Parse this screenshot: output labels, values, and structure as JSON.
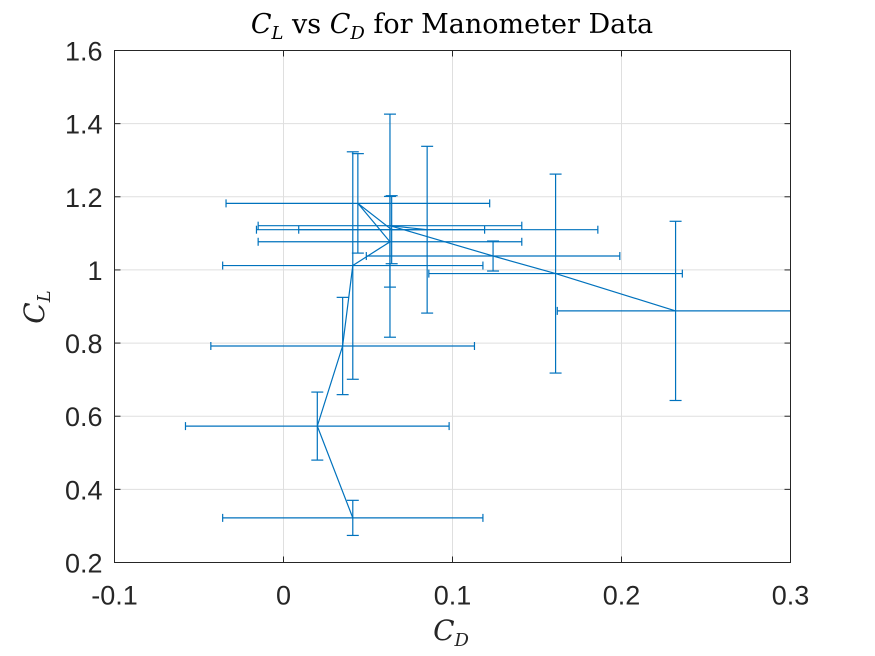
{
  "chart_data": {
    "type": "scatter",
    "title": "C_L vs C_D for Manometer Data",
    "title_parts": {
      "a": "C",
      "a_sub": "L",
      "mid": " vs ",
      "b": "C",
      "b_sub": "D",
      "rest": " for Manometer Data"
    },
    "xlabel": {
      "main": "C",
      "sub": "D"
    },
    "ylabel": {
      "main": "C",
      "sub": "L"
    },
    "xlim": [
      -0.1,
      0.3
    ],
    "ylim": [
      0.2,
      1.6
    ],
    "x_ticks": [
      -0.1,
      0,
      0.1,
      0.2,
      0.3
    ],
    "x_tick_labels": [
      "-0.1",
      "0",
      "0.1",
      "0.2",
      "0.3"
    ],
    "y_ticks": [
      0.2,
      0.4,
      0.6,
      0.8,
      1.0,
      1.2,
      1.4,
      1.6
    ],
    "y_tick_labels": [
      "0.2",
      "0.4",
      "0.6",
      "0.8",
      "1",
      "1.2",
      "1.4",
      "1.6"
    ],
    "grid": true,
    "color": "#0072bd",
    "series": [
      {
        "points": [
          {
            "x": 0.041,
            "y": 0.322,
            "xerr": 0.077,
            "yerr": 0.048
          },
          {
            "x": 0.02,
            "y": 0.573,
            "xerr": 0.078,
            "yerr": 0.093
          },
          {
            "x": 0.035,
            "y": 0.792,
            "xerr": 0.078,
            "yerr": 0.133
          },
          {
            "x": 0.041,
            "y": 1.012,
            "xerr": 0.077,
            "yerr": 0.311
          },
          {
            "x": 0.063,
            "y": 1.077,
            "xerr": 0.078,
            "yerr": 0.124
          },
          {
            "x": 0.044,
            "y": 1.182,
            "xerr": 0.078,
            "yerr": 0.136
          },
          {
            "x": 0.064,
            "y": 1.11,
            "xerr": 0.055,
            "yerr": 0.093
          },
          {
            "x": 0.085,
            "y": 1.11,
            "xerr": 0.101,
            "yerr": 0.228
          },
          {
            "x": 0.063,
            "y": 1.121,
            "xerr": 0.078,
            "yerr": 0.305
          },
          {
            "x": 0.124,
            "y": 1.038,
            "xerr": 0.075,
            "yerr": 0.041
          },
          {
            "x": 0.161,
            "y": 0.99,
            "xerr": 0.075,
            "yerr": 0.272
          },
          {
            "x": 0.232,
            "y": 0.888,
            "xerr": 0.07,
            "yerr": 0.245
          }
        ]
      }
    ]
  }
}
